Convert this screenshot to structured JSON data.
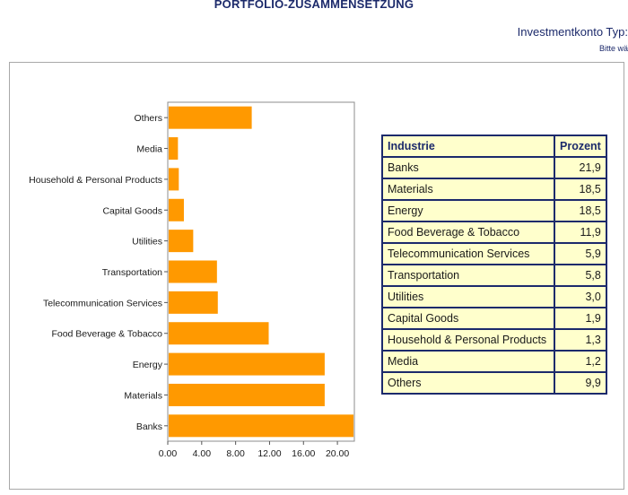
{
  "page": {
    "title": "PORTFOLIO-ZUSAMMENSETZUNG",
    "account_type_label": "Investmentkonto Typ:",
    "account_type_hint": "Bitte wä"
  },
  "colors": {
    "bar": "#ff9900",
    "navy": "#1c2a6b",
    "table_bg": "#ffffcc"
  },
  "chart_data": {
    "type": "bar",
    "orientation": "horizontal",
    "categories": [
      "Others",
      "Media",
      "Household & Personal Products",
      "Capital Goods",
      "Utilities",
      "Transportation",
      "Telecommunication Services",
      "Food Beverage & Tobacco",
      "Energy",
      "Materials",
      "Banks"
    ],
    "values": [
      9.9,
      1.2,
      1.3,
      1.9,
      3.0,
      5.8,
      5.9,
      11.9,
      18.5,
      18.5,
      21.9
    ],
    "xticks": [
      "0.00",
      "4.00",
      "8.00",
      "12.00",
      "16.00",
      "20.00"
    ],
    "xlim": [
      0,
      22
    ],
    "title": "",
    "xlabel": "",
    "ylabel": ""
  },
  "table": {
    "header_industry": "Industrie",
    "header_percent": "Prozent",
    "rows": [
      {
        "name": "Banks",
        "value": "21,9"
      },
      {
        "name": "Materials",
        "value": "18,5"
      },
      {
        "name": "Energy",
        "value": "18,5"
      },
      {
        "name": "Food Beverage & Tobacco",
        "value": "11,9"
      },
      {
        "name": "Telecommunication Services",
        "value": "5,9"
      },
      {
        "name": "Transportation",
        "value": "5,8"
      },
      {
        "name": "Utilities",
        "value": "3,0"
      },
      {
        "name": "Capital Goods",
        "value": "1,9"
      },
      {
        "name": "Household & Personal Products",
        "value": "1,3"
      },
      {
        "name": "Media",
        "value": "1,2"
      },
      {
        "name": "Others",
        "value": "9,9"
      }
    ]
  }
}
